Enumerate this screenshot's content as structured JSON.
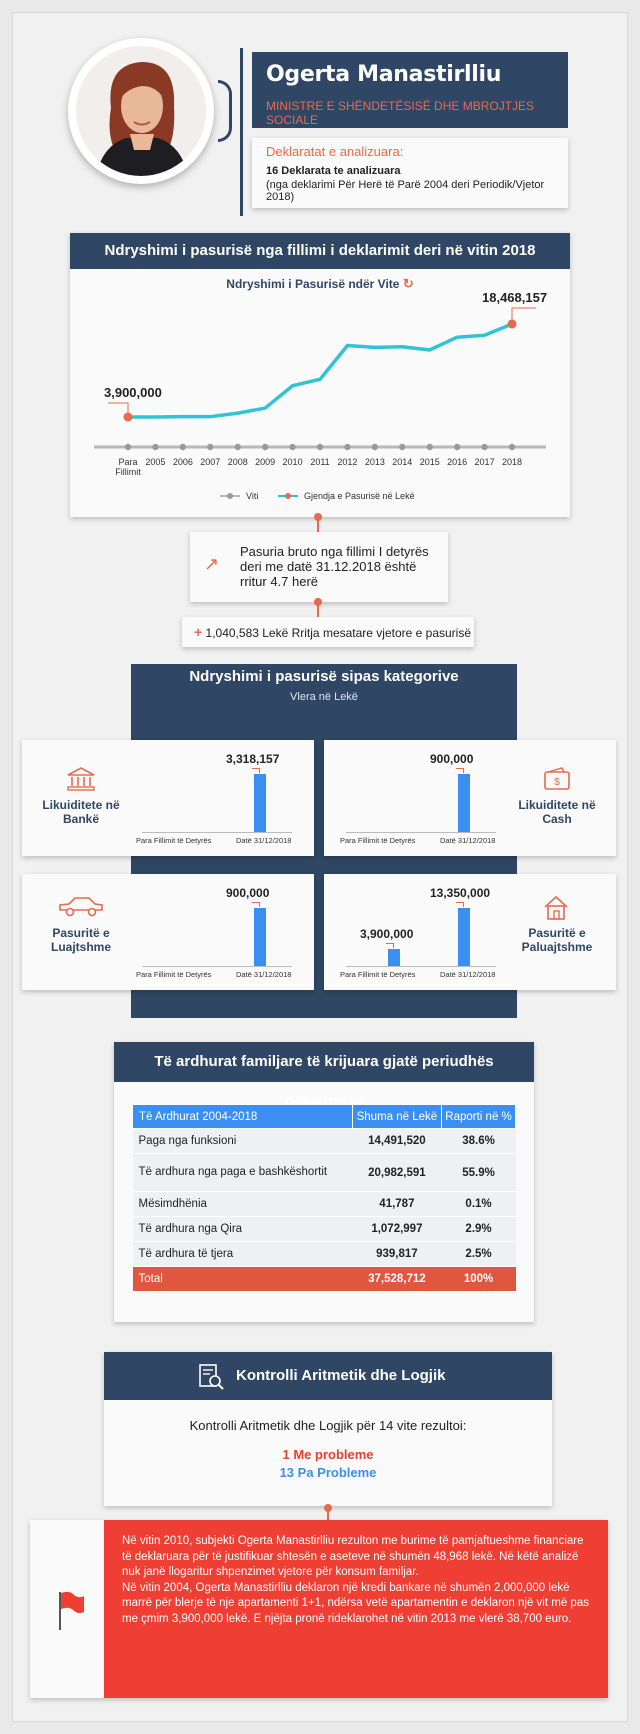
{
  "profile": {
    "name": "Ogerta Manastirlliu",
    "role": "MINISTRE E SHËNDETËSISË DHE MBROJTJES SOCIALE",
    "declarations_title": "Deklaratat e analizuara:",
    "declarations_count": "16 Deklarata te analizuara",
    "declarations_range": "(nga deklarimi Për Herë të Parë 2004 deri Periodik/Vjetor 2018)"
  },
  "wealth_section": {
    "title": "Ndryshimi i pasurisë nga fillimi i deklarimit deri në vitin 2018",
    "chart_title": "Ndryshimi i Pasurisë ndër Vite",
    "start_label": "3,900,000",
    "end_label": "18,468,157",
    "legend_years": "Viti",
    "legend_wealth": "Gjendja e Pasurisë në Lekë"
  },
  "chart_data": {
    "type": "line",
    "title": "Ndryshimi i Pasurisë ndër Vite",
    "categories": [
      "Para Fillimit",
      "2005",
      "2006",
      "2007",
      "2008",
      "2009",
      "2010",
      "2011",
      "2012",
      "2013",
      "2014",
      "2015",
      "2016",
      "2017",
      "2018"
    ],
    "series": [
      {
        "name": "Gjendja e Pasurisë në Lekë",
        "values": [
          3900000,
          3900000,
          3950000,
          3950000,
          4500000,
          5300000,
          8800000,
          9800000,
          15100000,
          14800000,
          14900000,
          14400000,
          16400000,
          16700000,
          18468157
        ]
      }
    ],
    "color": "#2ec4d6",
    "marker_color": "#e66a4f"
  },
  "growth": {
    "icon": "trend-up-icon",
    "text": "Pasuria bruto nga fillimi I detyrës deri me datë 31.12.2018 është rritur 4.7 herë",
    "rate": "1,040,583 Lekë Rritja mesatare vjetore e pasurisë",
    "plus": "+"
  },
  "categories": {
    "title": "Ndryshimi i pasurisë sipas kategorive",
    "subtitle": "Vlera në Lekë",
    "label_before": "Para Fillimit të Detyrës",
    "label_after": "Datë 31/12/2018",
    "items": [
      {
        "label": "Likuiditete në Bankë",
        "icon": "bank-icon",
        "before": 0,
        "after": 3318157,
        "after_label": "3,318,157",
        "before_label": ""
      },
      {
        "label": "Likuiditete në Cash",
        "icon": "wallet-icon",
        "before": 0,
        "after": 900000,
        "after_label": "900,000",
        "before_label": ""
      },
      {
        "label": "Pasuritë e Luajtshme",
        "icon": "car-icon",
        "before": 0,
        "after": 900000,
        "after_label": "900,000",
        "before_label": ""
      },
      {
        "label": "Pasuritë e Paluajtshme",
        "icon": "house-icon",
        "before": 3900000,
        "after": 13350000,
        "after_label": "13,350,000",
        "before_label": "3,900,000"
      }
    ]
  },
  "income": {
    "title": "Të ardhurat familjare të krijuara gjatë periudhës deklaruese",
    "headers": [
      "Të Ardhurat 2004-2018",
      "Shuma në Lekë",
      "Raporti në %"
    ],
    "rows": [
      [
        "Paga nga funksioni",
        "14,491,520",
        "38.6%"
      ],
      [
        "Të ardhura nga paga e bashkëshortit",
        "20,982,591",
        "55.9%"
      ],
      [
        "Mësimdhënia",
        "41,787",
        "0.1%"
      ],
      [
        "Të ardhura nga Qira",
        "1,072,997",
        "2.9%"
      ],
      [
        "Të ardhura të tjera",
        "939,817",
        "2.5%"
      ]
    ],
    "total": [
      "Total",
      "37,528,712",
      "100%"
    ]
  },
  "control": {
    "title": "Kontrolli Aritmetik dhe Logjik",
    "icon": "document-search-icon",
    "intro": "Kontrolli Aritmetik dhe Logjik për 14 vite rezultoi:",
    "with_problems": "1 Me probleme",
    "without_problems": "13 Pa Probleme"
  },
  "note": {
    "icon": "flag-icon",
    "text1": "Në vitin 2010, subjekti Ogerta Manastirlliu rezulton me burime të pamjaftueshme financiare të deklaruara për të justifikuar shtesën e aseteve në shumën 48,968 lekë. Në këtë analizë nuk janë llogaritur shpenzimet vjetore për konsum familjar.",
    "text2": "Në vitin 2004, Ogerta Manastirlliu deklaron një kredi bankare në shumën 2,000,000 lekë marrë për blerje të nje apartamenti 1+1, ndërsa vetë apartamentin e deklaron një vit më pas me çmim 3,900,000 lekë. E njëjta pronë rideklarohet në vitin 2013 me vlerë 38,700 euro."
  }
}
